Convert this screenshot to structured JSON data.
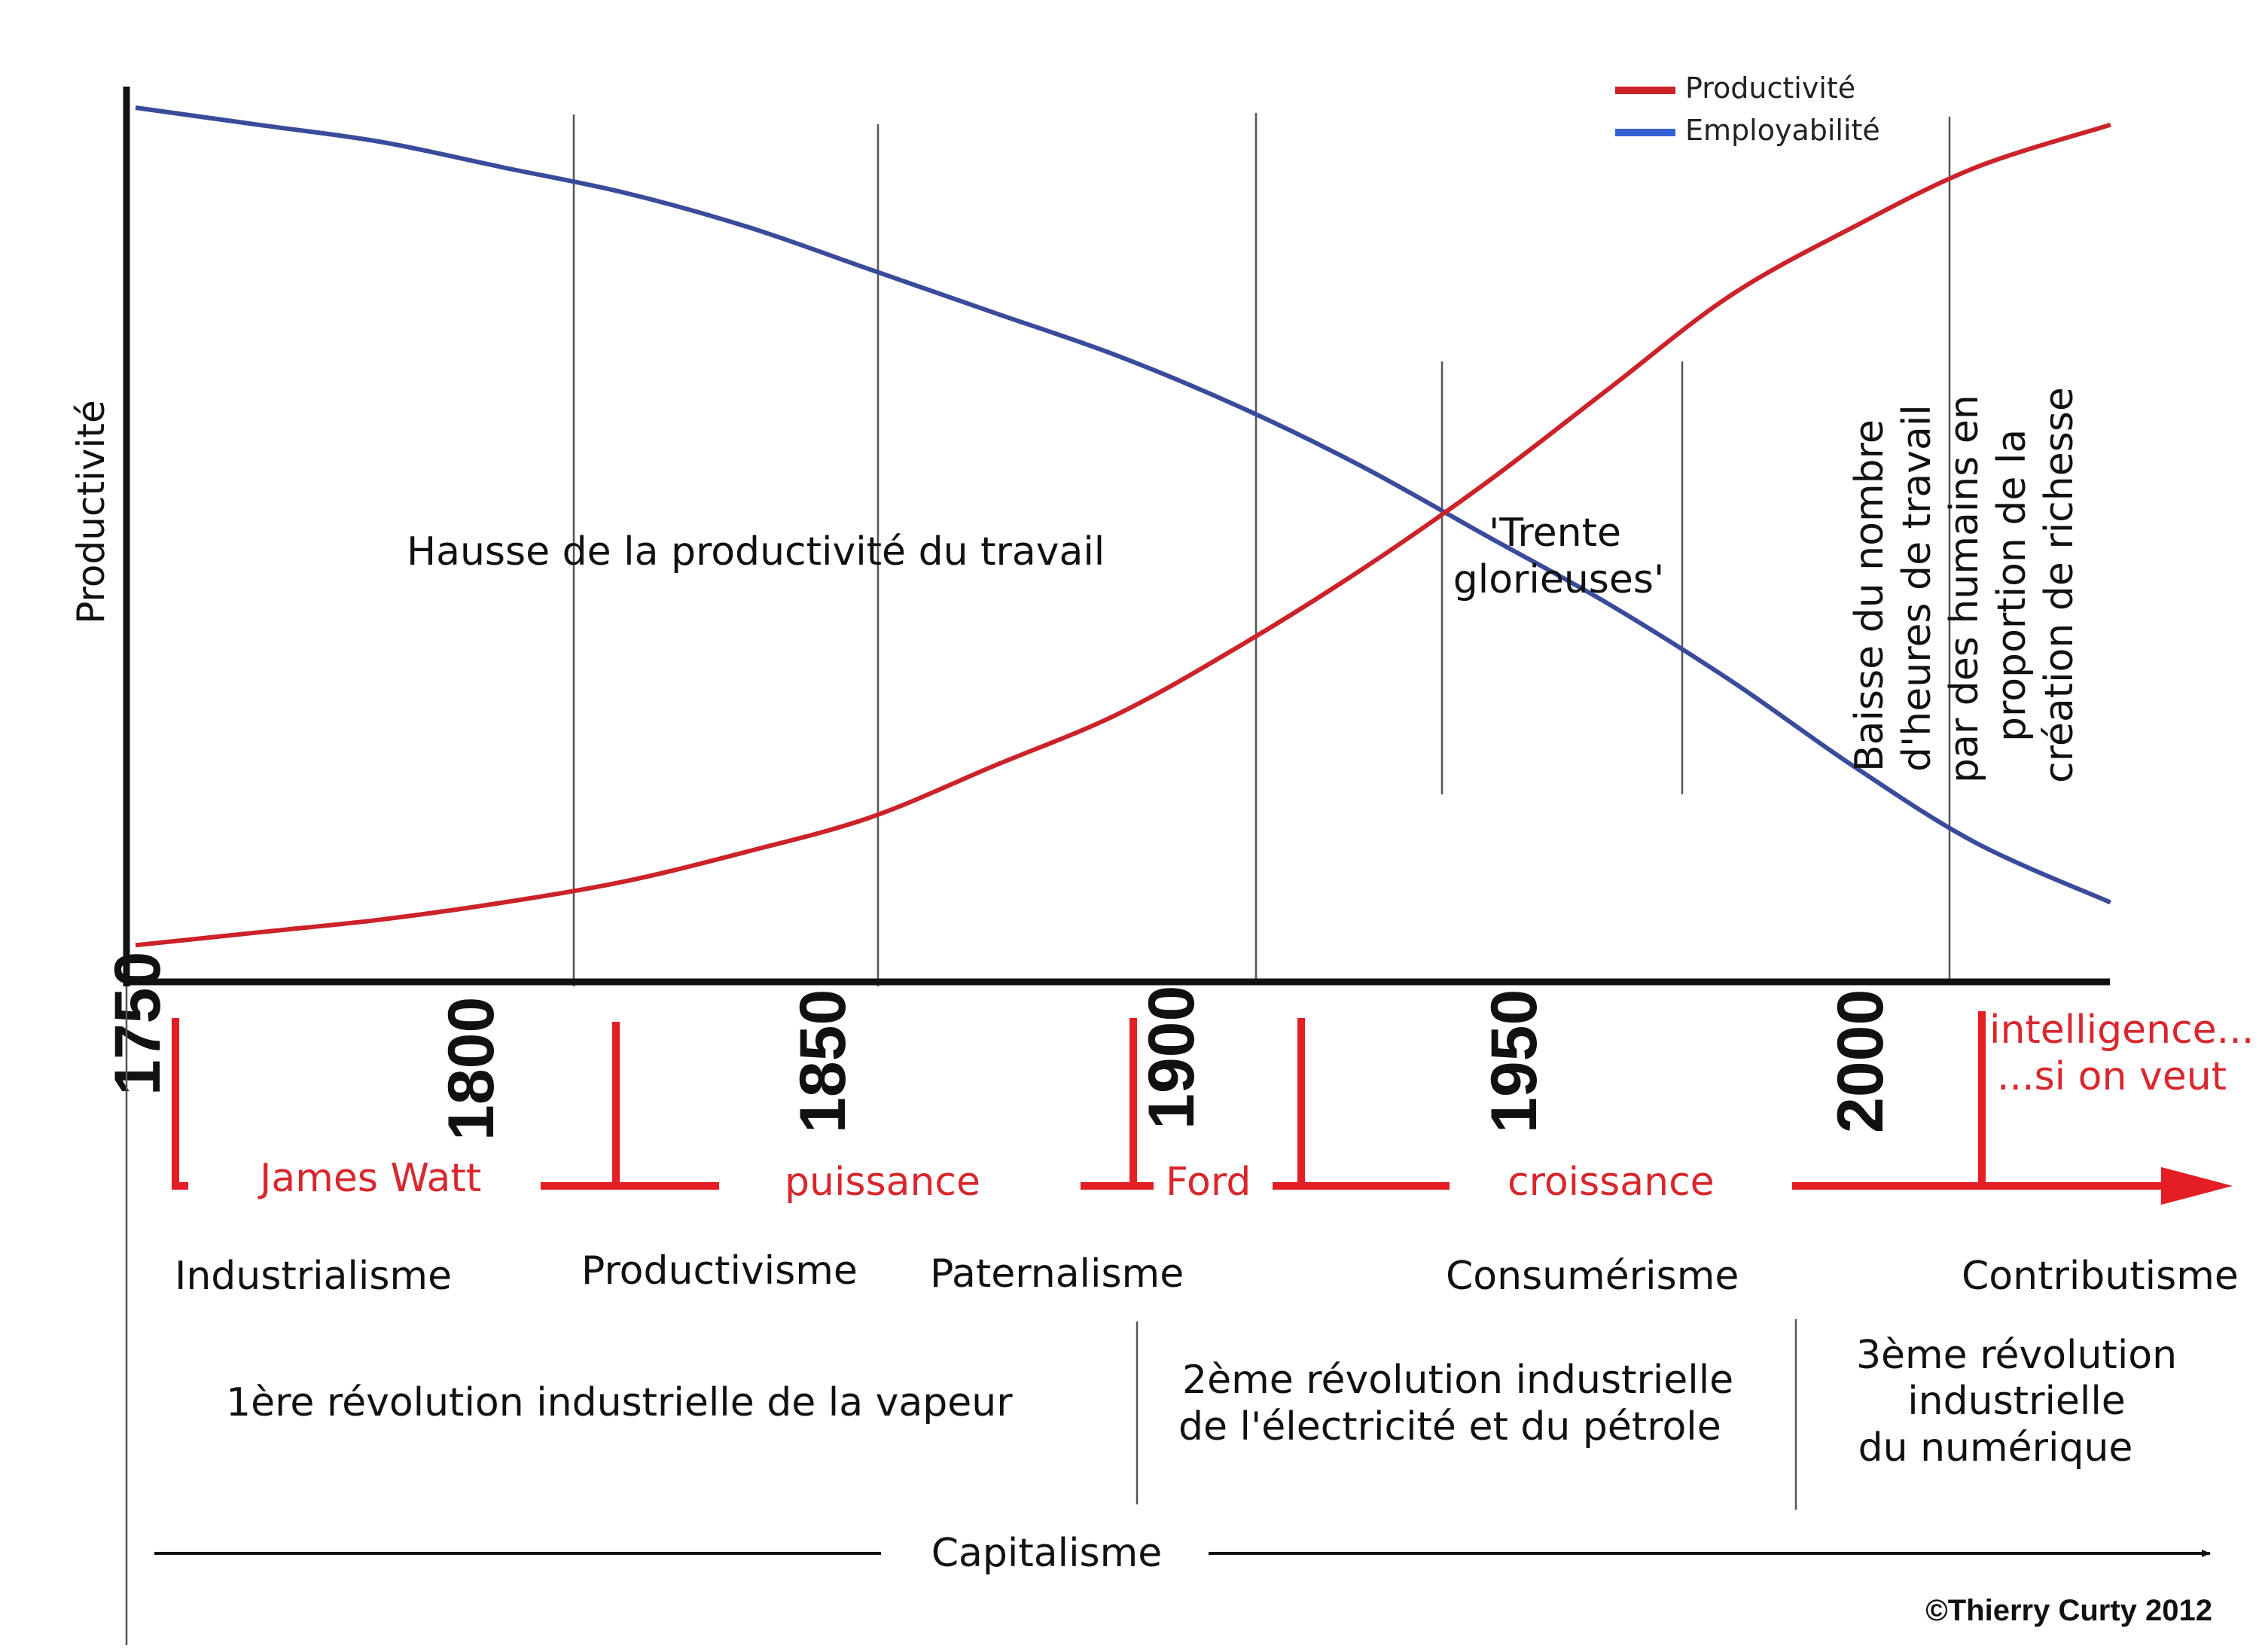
{
  "chart_data": {
    "type": "line",
    "ylabel": "Productivité",
    "xlim": [
      1750,
      2080
    ],
    "x_ticks": [
      "1750",
      "1800",
      "1850",
      "1900",
      "1950",
      "2000"
    ],
    "series": [
      {
        "name": "Productivité",
        "color": "#cc2229",
        "x": [
          1750,
          1770,
          1790,
          1810,
          1830,
          1850,
          1870,
          1890,
          1910,
          1930,
          1950,
          1970,
          1990,
          2010,
          2030,
          2050,
          2072
        ],
        "y": [
          2,
          3.5,
          5,
          7,
          9.5,
          13,
          17,
          23,
          29,
          37,
          46,
          56,
          67,
          78,
          86,
          93,
          98
        ]
      },
      {
        "name": "Employabilité",
        "color": "#3a4b9c",
        "x": [
          1750,
          1770,
          1790,
          1810,
          1830,
          1850,
          1870,
          1890,
          1910,
          1930,
          1950,
          1970,
          1990,
          2010,
          2030,
          2050,
          2072
        ],
        "y": [
          100,
          98,
          96,
          93,
          90,
          86,
          81,
          76,
          71,
          65,
          58,
          50,
          42,
          33,
          23,
          14,
          7
        ]
      }
    ],
    "legend": {
      "position": "top-right",
      "items": [
        {
          "label": "Productivité",
          "color": "#cc2229"
        },
        {
          "label": "Employabilité",
          "color": "#3561d4"
        }
      ]
    },
    "annotations": {
      "hausse": "Hausse de la productivité du travail",
      "trente_1": "'Trente",
      "trente_2": "glorieuses'",
      "baisse_lines": [
        "Baisse du nombre",
        "d'heures de travail",
        "par des humains en",
        "proportion de la",
        "création de richesse"
      ]
    }
  },
  "timeline": {
    "milestones": [
      "James Watt",
      "puissance",
      "Ford",
      "croissance"
    ],
    "future_1": "intelligence...",
    "future_2": "...si on veut",
    "eras": [
      "Industrialisme",
      "Productivisme",
      "Paternalisme",
      "Consumérisme",
      "Contributisme"
    ],
    "revolution_1": "1ère révolution industrielle de la vapeur",
    "revolution_2_line1": "2ème révolution industrielle",
    "revolution_2_line2": "de l'électricité et du pétrole",
    "revolution_3_line1": "3ème révolution",
    "revolution_3_line2": "industrielle",
    "revolution_3_line3": "du numérique",
    "system": "Capitalisme"
  },
  "copyright": "©Thierry Curty 2012"
}
